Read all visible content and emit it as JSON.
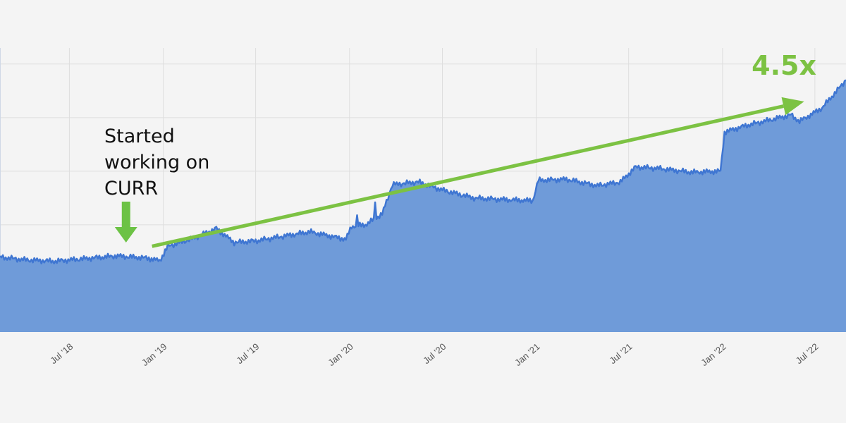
{
  "chart_data": {
    "type": "area",
    "title": "",
    "xlabel": "",
    "ylabel": "",
    "x_range": [
      "2018-02-15",
      "2022-08-31"
    ],
    "y_range": [
      0,
      5.3
    ],
    "grid": true,
    "x_ticks": [
      {
        "date": "2018-07-01",
        "label": "Jul '18"
      },
      {
        "date": "2019-01-01",
        "label": "Jan '19"
      },
      {
        "date": "2019-07-01",
        "label": "Jul '19"
      },
      {
        "date": "2020-01-01",
        "label": "Jan '20"
      },
      {
        "date": "2020-07-01",
        "label": "Jul '20"
      },
      {
        "date": "2021-01-01",
        "label": "Jan '21"
      },
      {
        "date": "2021-07-01",
        "label": "Jul '21"
      },
      {
        "date": "2022-01-01",
        "label": "Jan '22"
      },
      {
        "date": "2022-07-01",
        "label": "Jul '22"
      }
    ],
    "y_gridlines": [
      2,
      3,
      4,
      5
    ],
    "series": [
      {
        "values": [
          {
            "x": "2018-02-15",
            "y": 1.4
          },
          {
            "x": "2018-04-01",
            "y": 1.35
          },
          {
            "x": "2018-06-01",
            "y": 1.32
          },
          {
            "x": "2018-08-01",
            "y": 1.37
          },
          {
            "x": "2018-10-01",
            "y": 1.42
          },
          {
            "x": "2018-12-01",
            "y": 1.38
          },
          {
            "x": "2018-12-25",
            "y": 1.33
          },
          {
            "x": "2019-01-10",
            "y": 1.6
          },
          {
            "x": "2019-03-01",
            "y": 1.75
          },
          {
            "x": "2019-04-15",
            "y": 1.93
          },
          {
            "x": "2019-05-20",
            "y": 1.67
          },
          {
            "x": "2019-07-01",
            "y": 1.7
          },
          {
            "x": "2019-09-01",
            "y": 1.8
          },
          {
            "x": "2019-10-15",
            "y": 1.87
          },
          {
            "x": "2019-12-25",
            "y": 1.73
          },
          {
            "x": "2020-01-05",
            "y": 1.97
          },
          {
            "x": "2020-02-01",
            "y": 2.0
          },
          {
            "x": "2020-03-05",
            "y": 2.2
          },
          {
            "x": "2020-03-25",
            "y": 2.75
          },
          {
            "x": "2020-05-15",
            "y": 2.8
          },
          {
            "x": "2020-07-01",
            "y": 2.65
          },
          {
            "x": "2020-09-01",
            "y": 2.5
          },
          {
            "x": "2020-11-01",
            "y": 2.47
          },
          {
            "x": "2020-12-25",
            "y": 2.45
          },
          {
            "x": "2021-01-05",
            "y": 2.83
          },
          {
            "x": "2021-03-01",
            "y": 2.85
          },
          {
            "x": "2021-05-01",
            "y": 2.73
          },
          {
            "x": "2021-06-15",
            "y": 2.8
          },
          {
            "x": "2021-07-15",
            "y": 3.08
          },
          {
            "x": "2021-09-01",
            "y": 3.05
          },
          {
            "x": "2021-11-01",
            "y": 2.98
          },
          {
            "x": "2021-12-28",
            "y": 3.0
          },
          {
            "x": "2022-01-05",
            "y": 3.73
          },
          {
            "x": "2022-02-15",
            "y": 3.85
          },
          {
            "x": "2022-04-01",
            "y": 3.95
          },
          {
            "x": "2022-05-15",
            "y": 4.05
          },
          {
            "x": "2022-06-01",
            "y": 3.93
          },
          {
            "x": "2022-07-15",
            "y": 4.18
          },
          {
            "x": "2022-08-31",
            "y": 4.7
          }
        ],
        "color": "#6f9bd9",
        "line_color": "#3f76d2"
      }
    ],
    "annotations": [
      {
        "text_lines": [
          "Started",
          "working on",
          "CURR"
        ],
        "arrow": "down",
        "arrow_date": "2018-10-20",
        "color": "#6cc245"
      },
      {
        "text": "4.5x",
        "trend_start": {
          "x": "2018-12-10",
          "y": 1.6
        },
        "trend_end": {
          "x": "2022-06-10",
          "y": 4.3
        },
        "color": "#7cc243"
      }
    ]
  }
}
